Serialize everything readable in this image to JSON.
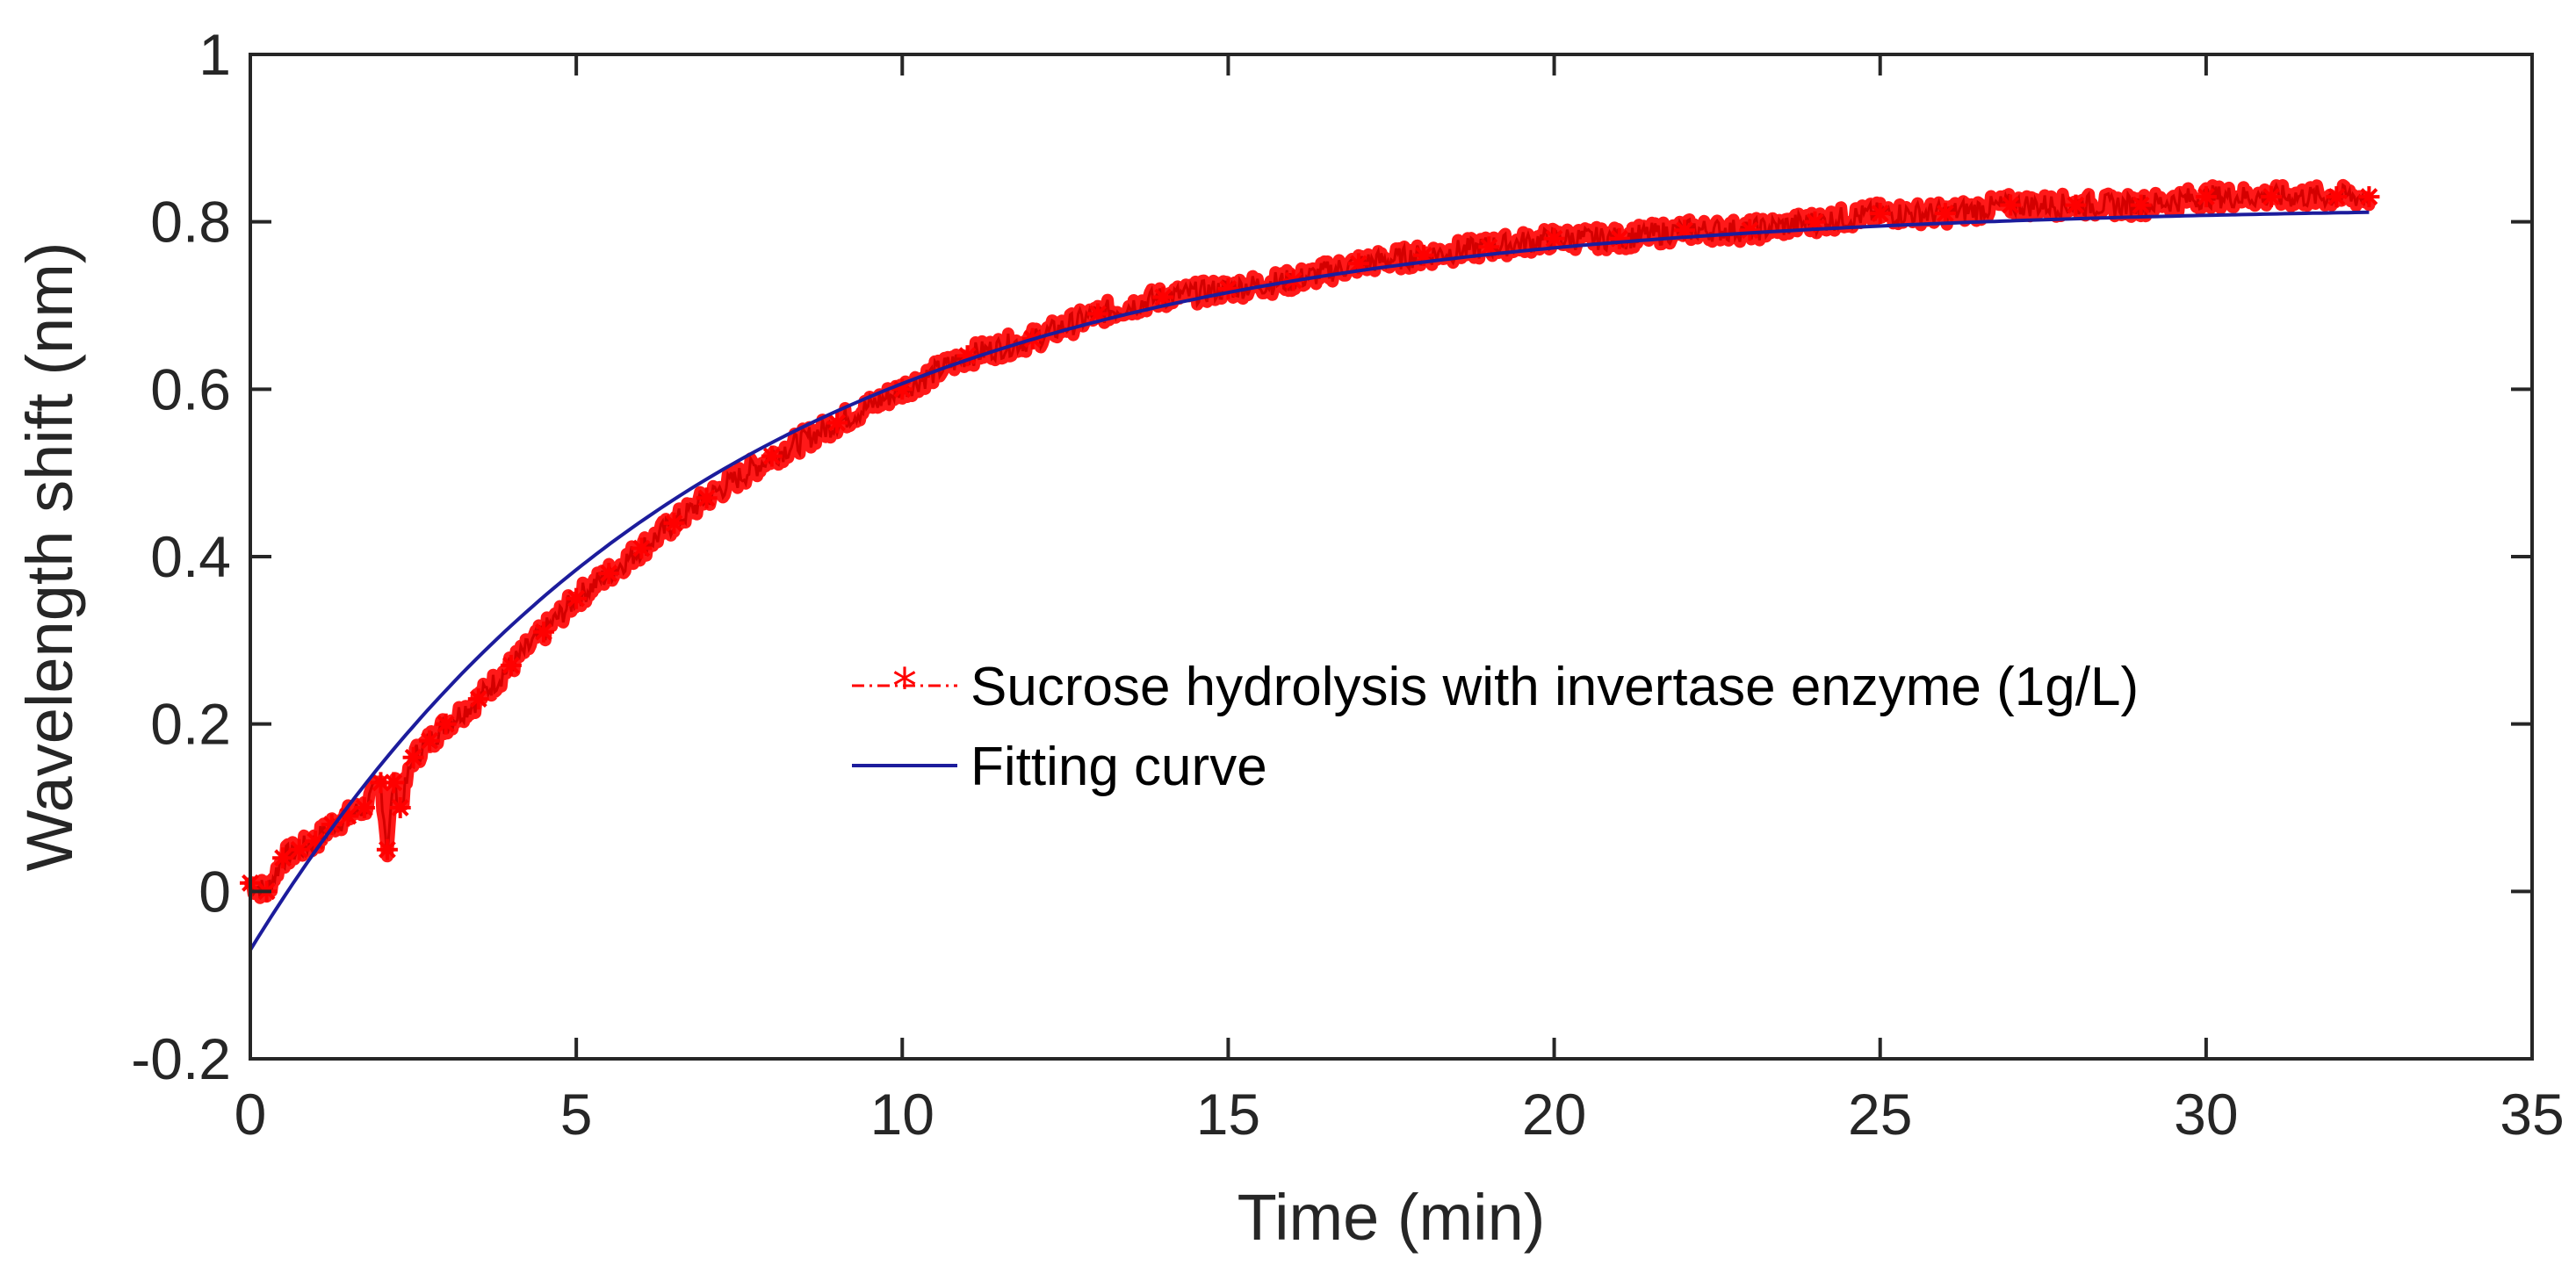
{
  "chart_data": {
    "type": "line",
    "title": "",
    "xlabel": "Time (min)",
    "ylabel": "Wavelength shift (nm)",
    "xlim": [
      0,
      35
    ],
    "ylim": [
      -0.2,
      1
    ],
    "x_ticks": [
      0,
      5,
      10,
      15,
      20,
      25,
      30,
      35
    ],
    "x_tick_labels": [
      "0",
      "5",
      "10",
      "15",
      "20",
      "25",
      "30",
      "35"
    ],
    "y_ticks": [
      -0.2,
      0,
      0.2,
      0.4,
      0.6,
      0.8,
      1
    ],
    "y_tick_labels": [
      "-0.2",
      "0",
      "0.2",
      "0.4",
      "0.6",
      "0.8",
      "1"
    ],
    "grid": false,
    "legend_position": "center-right",
    "colors": {
      "measured": "#ff0000",
      "fit": "#1c1c9c",
      "axis": "#262626"
    },
    "series": [
      {
        "name": "Sucrose hydrolysis with invertase enzyme (1g/L)",
        "style": "dash-dot-star",
        "x": [
          0,
          0.25,
          0.5,
          0.75,
          1,
          1.25,
          1.5,
          1.75,
          2,
          2.1,
          2.2,
          2.3,
          2.5,
          2.75,
          3,
          3.5,
          4,
          4.5,
          5,
          5.5,
          6,
          6.5,
          7,
          8,
          9,
          10,
          11,
          12,
          13,
          14,
          15,
          16,
          17,
          18,
          19,
          20,
          21,
          22,
          23,
          24,
          25,
          26,
          27,
          28,
          29,
          30,
          31,
          32,
          32.5
        ],
        "y": [
          0.01,
          0.0,
          0.04,
          0.05,
          0.06,
          0.08,
          0.09,
          0.1,
          0.13,
          0.05,
          0.13,
          0.1,
          0.16,
          0.18,
          0.2,
          0.23,
          0.27,
          0.31,
          0.35,
          0.38,
          0.41,
          0.44,
          0.47,
          0.52,
          0.56,
          0.6,
          0.64,
          0.66,
          0.69,
          0.71,
          0.72,
          0.73,
          0.75,
          0.76,
          0.77,
          0.78,
          0.78,
          0.79,
          0.79,
          0.8,
          0.81,
          0.81,
          0.82,
          0.82,
          0.82,
          0.83,
          0.83,
          0.83,
          0.83
        ]
      },
      {
        "name": "Fitting curve",
        "style": "solid",
        "model": {
          "type": "exponential_rise",
          "A": 0.82,
          "B": 0.89,
          "tau": 7.0
        },
        "x_range": [
          0,
          32.5
        ]
      }
    ]
  }
}
